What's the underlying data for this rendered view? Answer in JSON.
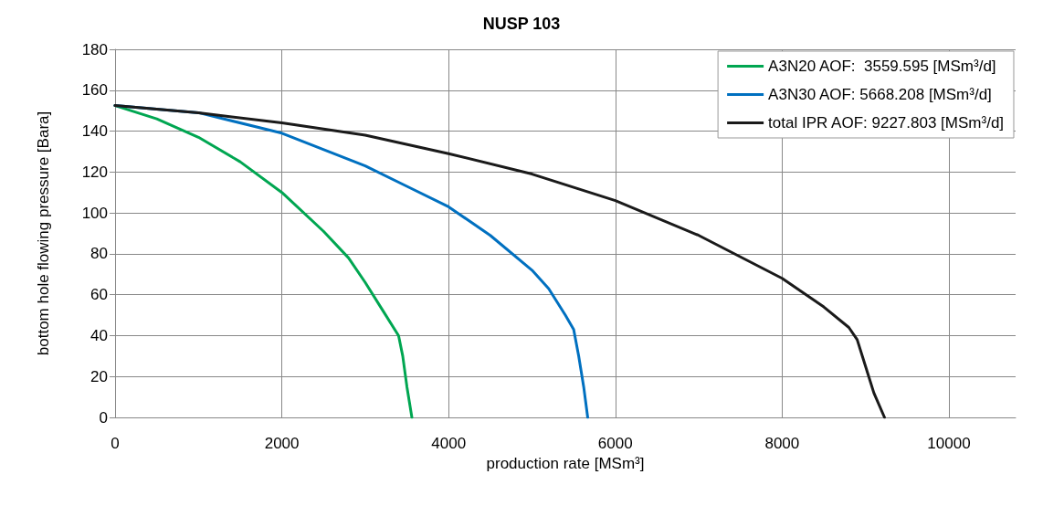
{
  "chart_data": {
    "type": "line",
    "title": "NUSP 103",
    "xlabel": "production rate [MSm³]",
    "ylabel": "bottom hole flowing pressure [Bara]",
    "xlim": [
      0,
      10800
    ],
    "xticks": [
      0,
      2000,
      4000,
      6000,
      8000,
      10000
    ],
    "ylim": [
      0,
      180
    ],
    "yticks": [
      0,
      20,
      40,
      60,
      80,
      100,
      120,
      140,
      160,
      180
    ],
    "grid": true,
    "legend": "top right",
    "marker": "none",
    "line_style": "solid",
    "series": [
      {
        "name": "A3N20 AOF:  3559.595 [MSm³/d]",
        "color": "#00a651",
        "x": [
          0,
          500,
          1000,
          1500,
          2000,
          2500,
          2800,
          3000,
          3200,
          3400,
          3450,
          3500,
          3559.595
        ],
        "values": [
          152.5,
          146,
          137,
          125,
          110,
          91,
          78,
          66,
          53,
          40,
          30,
          15,
          0
        ]
      },
      {
        "name": "A3N30 AOF: 5668.208 [MSm³/d]",
        "color": "#0070c0",
        "x": [
          0,
          1000,
          2000,
          3000,
          3500,
          4000,
          4500,
          5000,
          5200,
          5400,
          5500,
          5560,
          5620,
          5668.208
        ],
        "values": [
          152.5,
          149,
          139,
          123,
          113,
          103,
          89,
          72,
          63,
          50,
          43,
          30,
          15,
          0
        ]
      },
      {
        "name": "total IPR AOF: 9227.803 [MSm³/d]",
        "color": "#1a1a1a",
        "x": [
          0,
          1000,
          2000,
          3000,
          4000,
          5000,
          6000,
          7000,
          8000,
          8500,
          8800,
          8900,
          9000,
          9100,
          9227.803
        ],
        "values": [
          152.5,
          149,
          144,
          138,
          129,
          119,
          106,
          89,
          68,
          54,
          44,
          38,
          25,
          12,
          0
        ]
      }
    ]
  }
}
